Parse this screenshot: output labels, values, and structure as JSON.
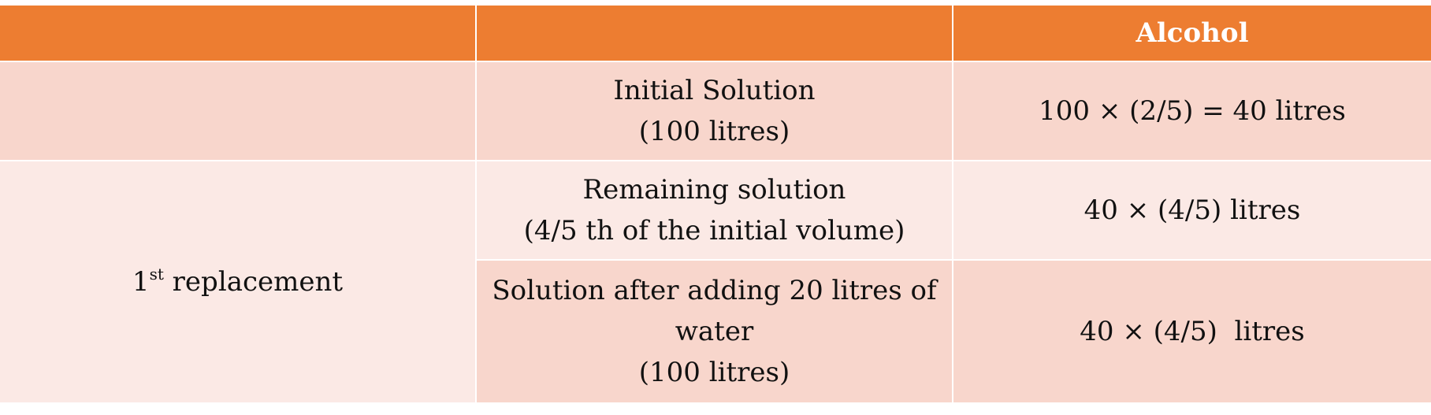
{
  "header": {
    "col1": "",
    "col2": "",
    "col3": "Alcohol"
  },
  "rows": [
    {
      "col1": "",
      "col2_line1": "Initial Solution",
      "col2_line2": "(100 litres)",
      "col3": "100 × (2/5) = 40 litres"
    },
    {
      "col1_prefix": "1",
      "col1_sup": "st",
      "col1_suffix": " replacement",
      "col2_line1": "Remaining solution",
      "col2_line2": "(4/5 th of the initial volume)",
      "col3": "40 × (4/5) litres"
    },
    {
      "col2_line1": "Solution after adding 20 litres of",
      "col2_line2": "water",
      "col2_line3": "(100 litres)",
      "col3": "40 × (4/5)  litres"
    }
  ],
  "colors": {
    "header": "#ed7d31",
    "row_dark": "#f8d6cc",
    "row_light": "#fbe9e5"
  }
}
